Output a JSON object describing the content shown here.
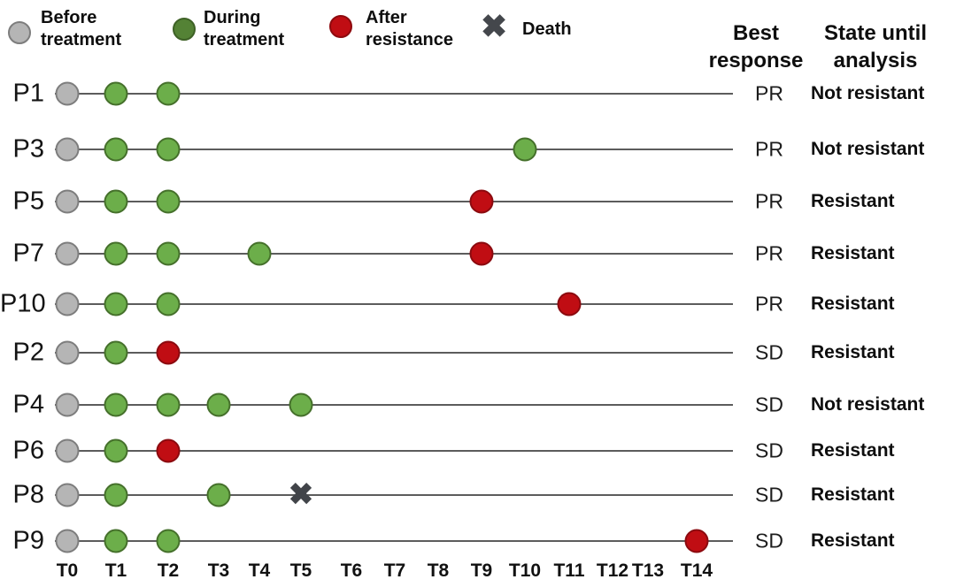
{
  "figure": {
    "columns": {
      "best_response": "Best response",
      "state_until_analysis": "State until analysis"
    }
  },
  "legend": {
    "items": [
      {
        "id": "before",
        "label": "Before treatment",
        "marker": "circle",
        "fill": "#b5b5b5",
        "stroke": "#7d7d7d"
      },
      {
        "id": "during",
        "label": "During treatment",
        "marker": "circle",
        "fill": "#548235",
        "stroke": "#3e6126"
      },
      {
        "id": "after",
        "label": "After resistance",
        "marker": "circle",
        "fill": "#c00d13",
        "stroke": "#8e0a0e"
      },
      {
        "id": "death",
        "label": "Death",
        "marker": "cross",
        "fill": "#44474c"
      }
    ]
  },
  "marker_styles": {
    "before": {
      "fill": "#b5b5b5",
      "stroke": "#7d7d7d"
    },
    "during": {
      "fill": "#6cae4a",
      "stroke": "#45702b"
    },
    "after": {
      "fill": "#c00d13",
      "stroke": "#8b0a0f"
    },
    "death": {
      "fill": "#414449"
    }
  },
  "chart_data": {
    "type": "scatter",
    "subtype": "patient-treatment-timeline",
    "title": "",
    "x_ticks": [
      "T0",
      "T1",
      "T2",
      "T3",
      "T4",
      "T5",
      "T6",
      "T7",
      "T8",
      "T9",
      "T10",
      "T11",
      "T12",
      "T13",
      "T14"
    ],
    "legend_entries": [
      "Before treatment",
      "During treatment",
      "After resistance",
      "Death"
    ],
    "columns": [
      "Best response",
      "State until analysis"
    ],
    "rows": [
      {
        "patient": "P1",
        "best_response": "PR",
        "state_until_analysis": "Not resistant",
        "events": [
          {
            "t": "T0",
            "type": "before"
          },
          {
            "t": "T1",
            "type": "during"
          },
          {
            "t": "T2",
            "type": "during"
          }
        ]
      },
      {
        "patient": "P3",
        "best_response": "PR",
        "state_until_analysis": "Not resistant",
        "events": [
          {
            "t": "T0",
            "type": "before"
          },
          {
            "t": "T1",
            "type": "during"
          },
          {
            "t": "T2",
            "type": "during"
          },
          {
            "t": "T10",
            "type": "during"
          }
        ]
      },
      {
        "patient": "P5",
        "best_response": "PR",
        "state_until_analysis": "Resistant",
        "events": [
          {
            "t": "T0",
            "type": "before"
          },
          {
            "t": "T1",
            "type": "during"
          },
          {
            "t": "T2",
            "type": "during"
          },
          {
            "t": "T9",
            "type": "after"
          }
        ]
      },
      {
        "patient": "P7",
        "best_response": "PR",
        "state_until_analysis": "Resistant",
        "events": [
          {
            "t": "T0",
            "type": "before"
          },
          {
            "t": "T1",
            "type": "during"
          },
          {
            "t": "T2",
            "type": "during"
          },
          {
            "t": "T4",
            "type": "during"
          },
          {
            "t": "T9",
            "type": "after"
          }
        ]
      },
      {
        "patient": "P10",
        "best_response": "PR",
        "state_until_analysis": "Resistant",
        "events": [
          {
            "t": "T0",
            "type": "before"
          },
          {
            "t": "T1",
            "type": "during"
          },
          {
            "t": "T2",
            "type": "during"
          },
          {
            "t": "T11",
            "type": "after"
          }
        ]
      },
      {
        "patient": "P2",
        "best_response": "SD",
        "state_until_analysis": "Resistant",
        "events": [
          {
            "t": "T0",
            "type": "before"
          },
          {
            "t": "T1",
            "type": "during"
          },
          {
            "t": "T2",
            "type": "after"
          }
        ]
      },
      {
        "patient": "P4",
        "best_response": "SD",
        "state_until_analysis": "Not resistant",
        "events": [
          {
            "t": "T0",
            "type": "before"
          },
          {
            "t": "T1",
            "type": "during"
          },
          {
            "t": "T2",
            "type": "during"
          },
          {
            "t": "T3",
            "type": "during"
          },
          {
            "t": "T5",
            "type": "during"
          }
        ]
      },
      {
        "patient": "P6",
        "best_response": "SD",
        "state_until_analysis": "Resistant",
        "events": [
          {
            "t": "T0",
            "type": "before"
          },
          {
            "t": "T1",
            "type": "during"
          },
          {
            "t": "T2",
            "type": "after"
          }
        ]
      },
      {
        "patient": "P8",
        "best_response": "SD",
        "state_until_analysis": "Resistant",
        "events": [
          {
            "t": "T0",
            "type": "before"
          },
          {
            "t": "T1",
            "type": "during"
          },
          {
            "t": "T3",
            "type": "during"
          },
          {
            "t": "T5",
            "type": "death"
          }
        ]
      },
      {
        "patient": "P9",
        "best_response": "SD",
        "state_until_analysis": "Resistant",
        "events": [
          {
            "t": "T0",
            "type": "before"
          },
          {
            "t": "T1",
            "type": "during"
          },
          {
            "t": "T2",
            "type": "during"
          },
          {
            "t": "T14",
            "type": "after"
          }
        ]
      }
    ]
  }
}
